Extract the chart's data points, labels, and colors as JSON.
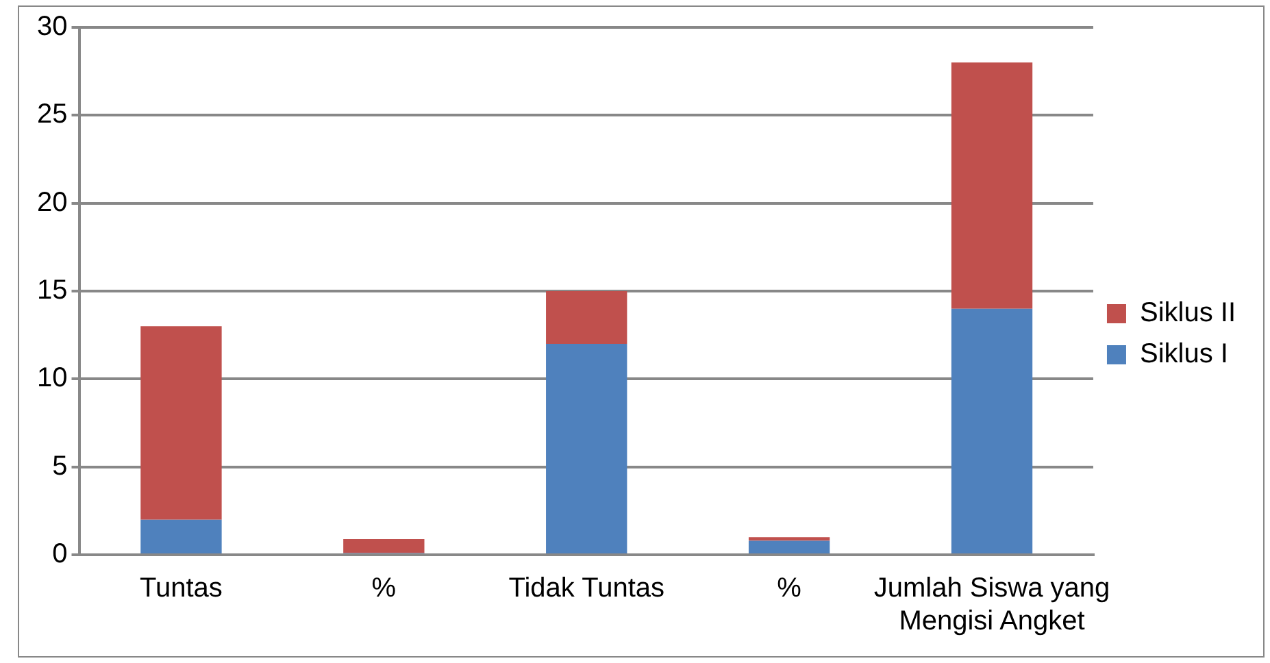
{
  "chart_data": {
    "type": "bar",
    "stacked": true,
    "categories": [
      "Tuntas",
      "%",
      "Tidak Tuntas",
      "%",
      "Jumlah Siswa yang Mengisi Angket"
    ],
    "series": [
      {
        "name": "Siklus I",
        "color": "#4f81bd",
        "values": [
          2,
          0.1,
          12,
          0.8,
          14
        ]
      },
      {
        "name": "Siklus II",
        "color": "#c0504d",
        "values": [
          11,
          0.8,
          3,
          0.2,
          14
        ]
      }
    ],
    "ylim": [
      0,
      30
    ],
    "yticks": [
      0,
      5,
      10,
      15,
      20,
      25,
      30
    ],
    "grid": "y",
    "legend": "right"
  }
}
